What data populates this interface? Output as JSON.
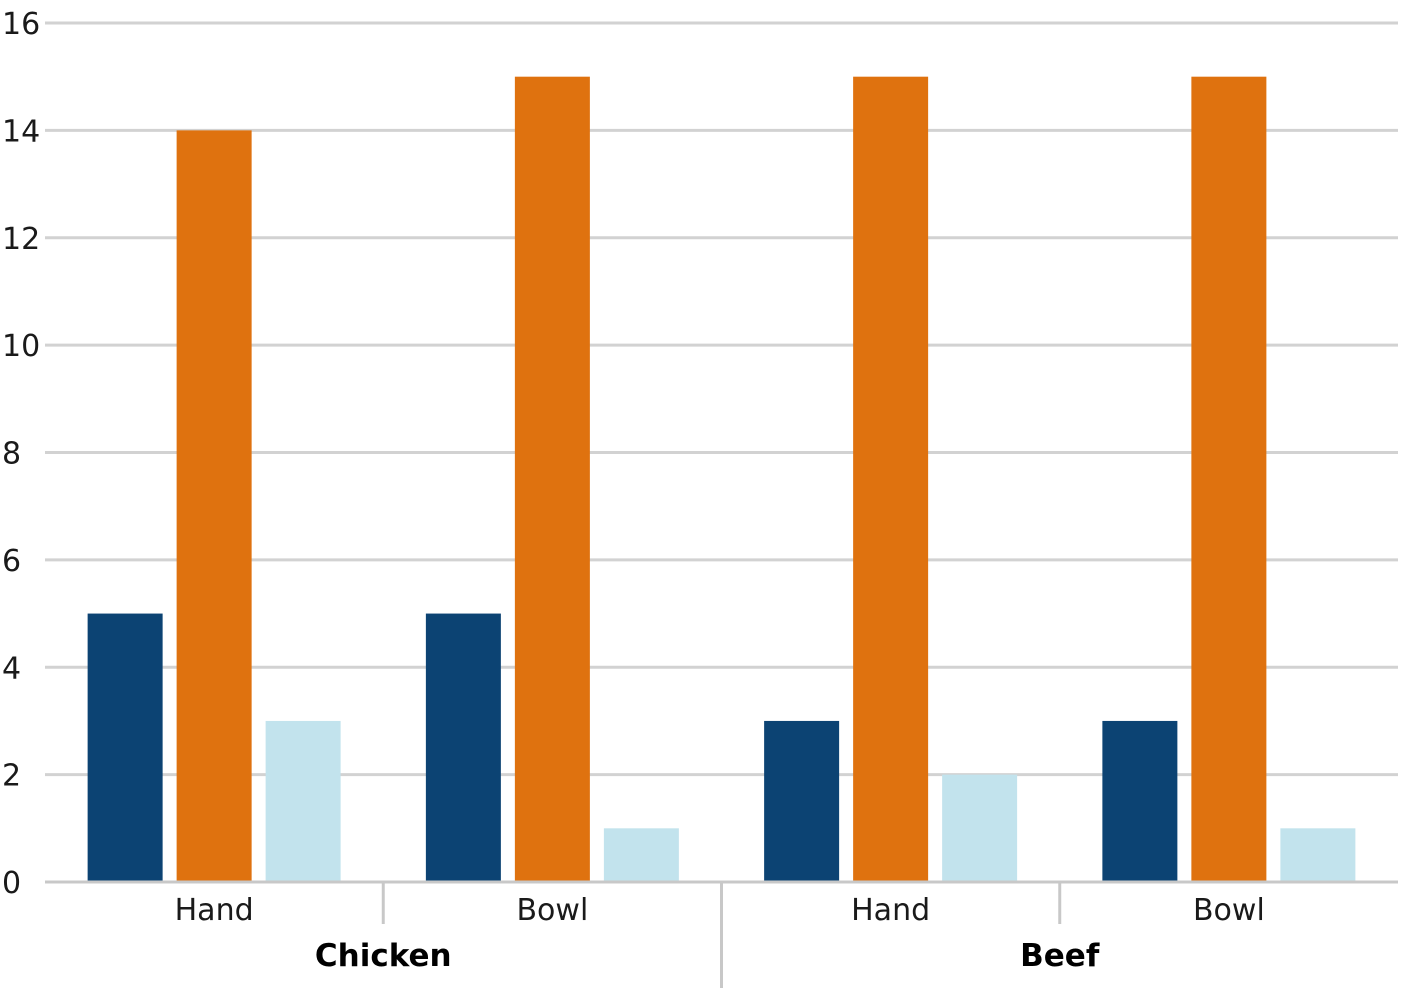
{
  "chart_data": {
    "type": "bar",
    "ylim": [
      0,
      16
    ],
    "yticks": [
      0,
      2,
      4,
      6,
      8,
      10,
      12,
      14,
      16
    ],
    "grid": true,
    "legend": "none",
    "groups": [
      {
        "label": "Chicken",
        "categories": [
          "Hand",
          "Bowl"
        ]
      },
      {
        "label": "Beef",
        "categories": [
          "Hand",
          "Bowl"
        ]
      }
    ],
    "categories": [
      "Hand",
      "Bowl",
      "Hand",
      "Bowl"
    ],
    "series": [
      {
        "color": "#0c4373",
        "values": [
          5,
          5,
          3,
          3
        ]
      },
      {
        "color": "#df720f",
        "values": [
          14,
          15,
          15,
          15
        ]
      },
      {
        "color": "#c2e3ed",
        "values": [
          3,
          1,
          2,
          1
        ]
      }
    ]
  }
}
